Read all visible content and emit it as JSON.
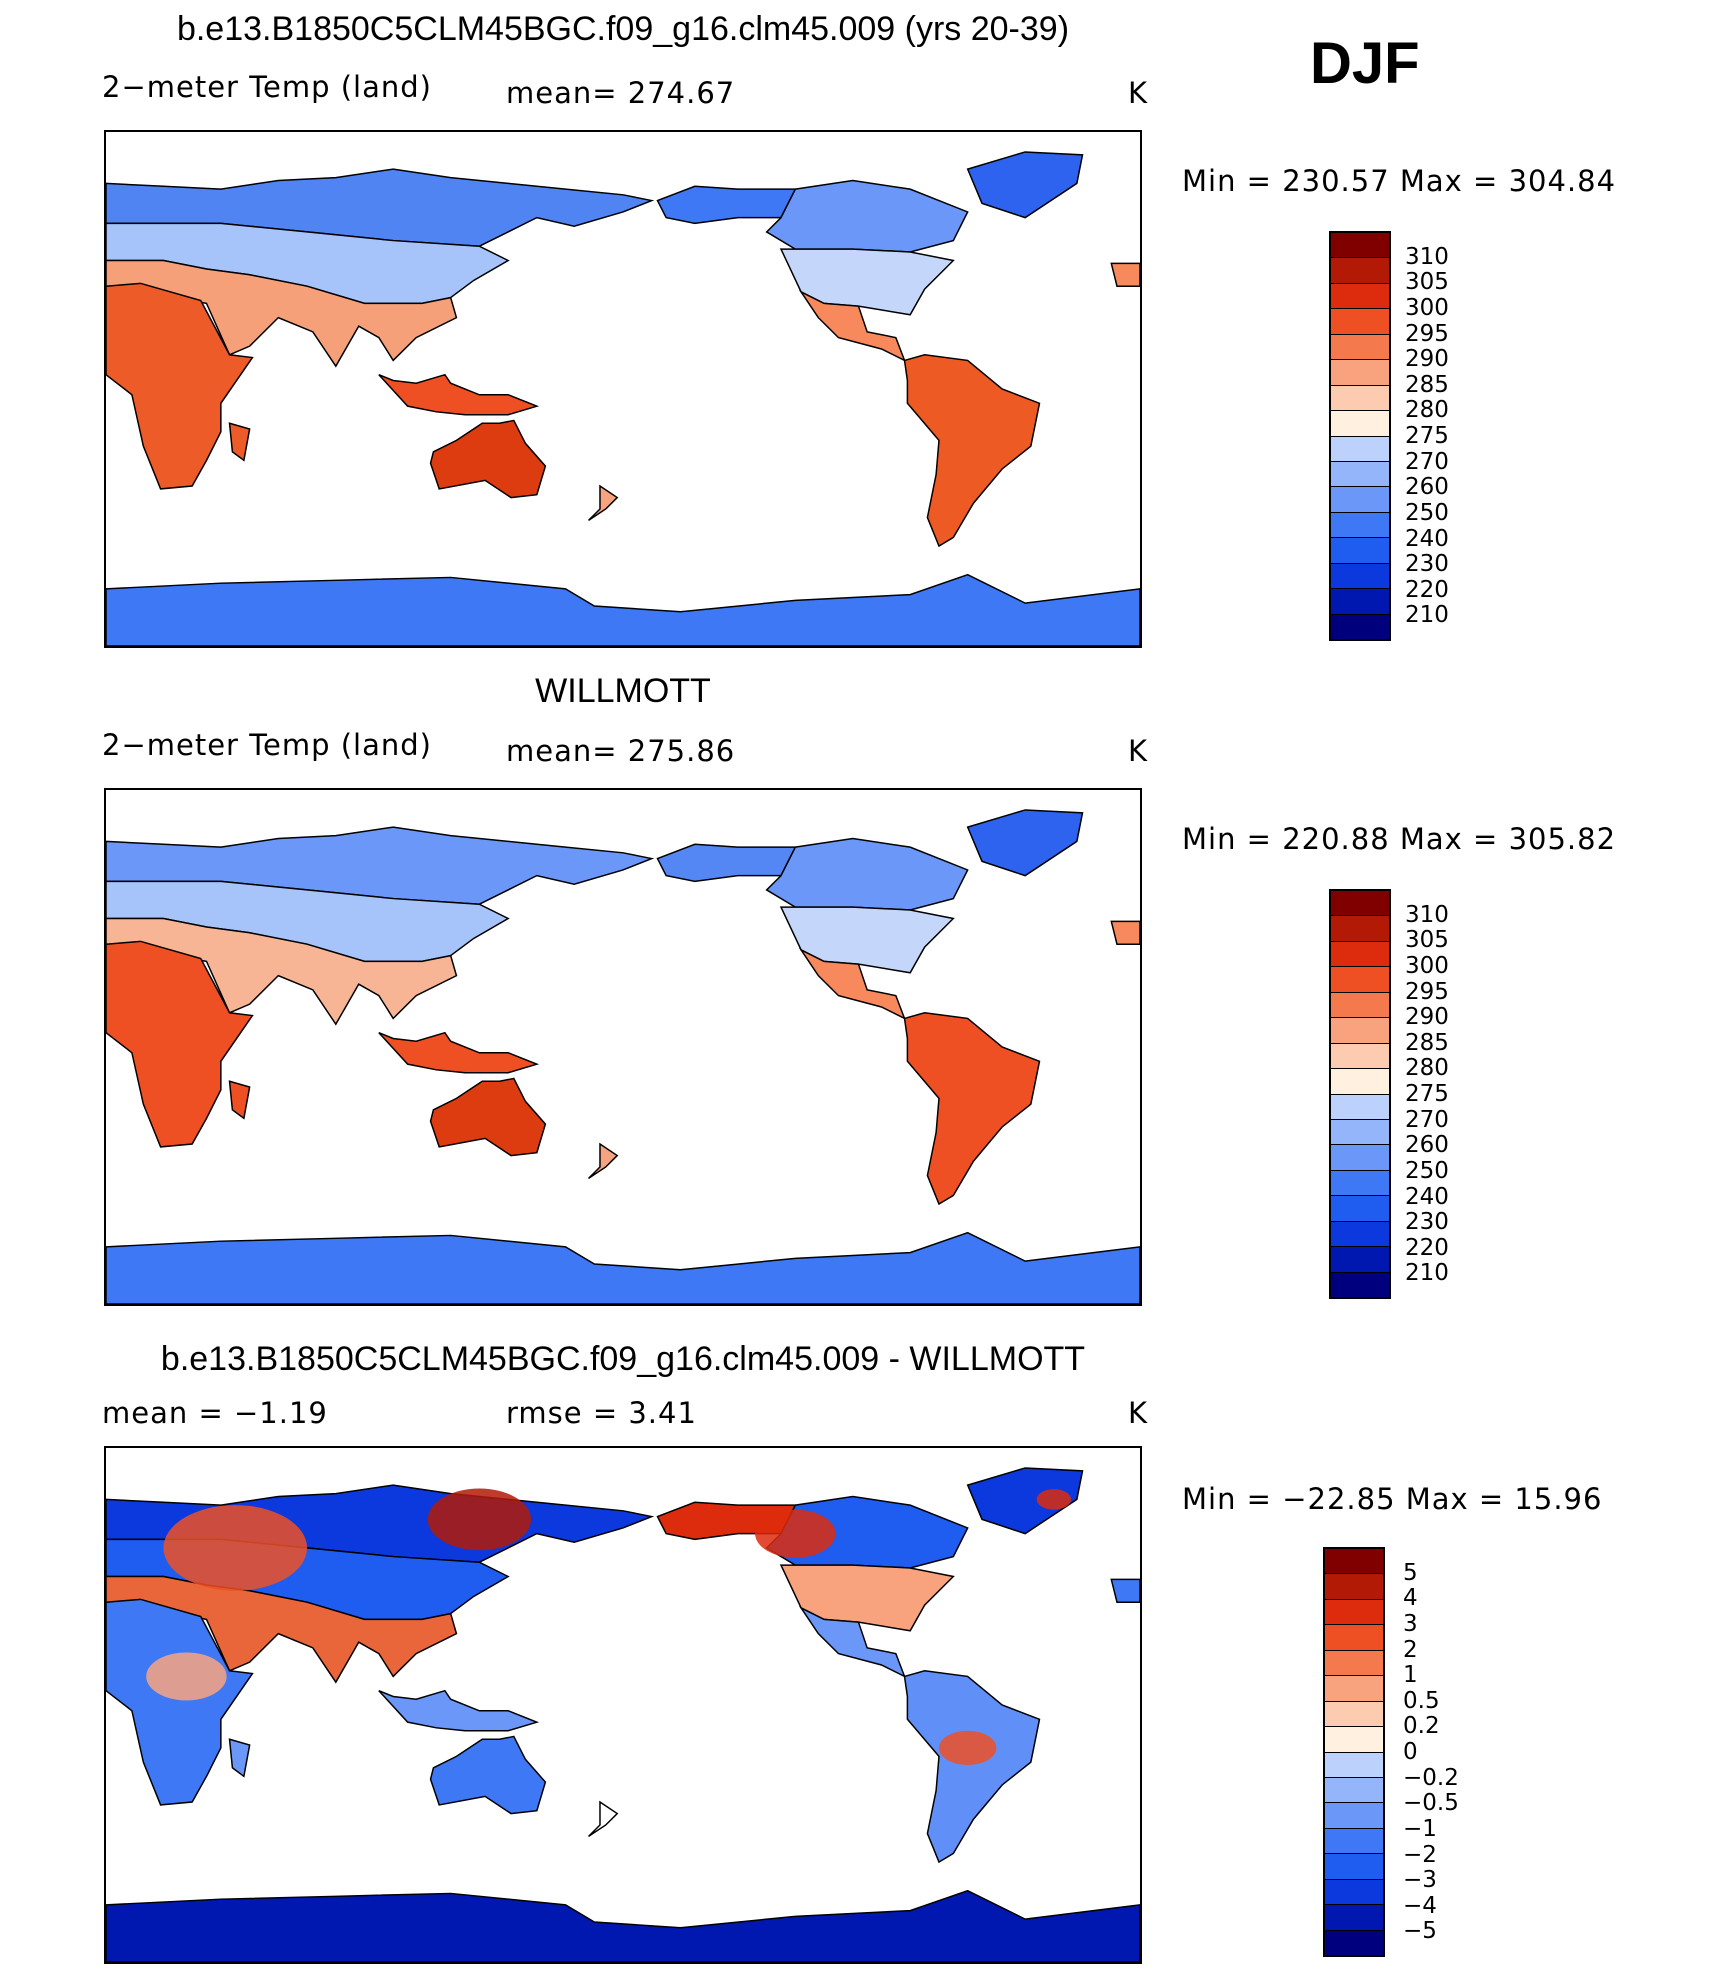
{
  "season": "DJF",
  "colors": {
    "abs_scale": [
      "#00007f",
      "#0017b0",
      "#0b39de",
      "#1f5cf0",
      "#3e78f5",
      "#6a97f8",
      "#95b5fa",
      "#bcd1fb",
      "#dce9fd",
      "#fff0e0",
      "#fccbb0",
      "#f9a37e",
      "#f47a4e",
      "#ee5024",
      "#dd2c0d",
      "#b31a06",
      "#800000"
    ],
    "diff_scale": [
      "#00007f",
      "#0017b0",
      "#0b39de",
      "#1f5cf0",
      "#3e78f5",
      "#6a97f8",
      "#95b5fa",
      "#bcd1fb",
      "#dce9fd",
      "#fff0e0",
      "#fccbb0",
      "#f9a37e",
      "#f47a4e",
      "#ee5024",
      "#dd2c0d",
      "#b31a06",
      "#800000"
    ]
  },
  "panels": [
    {
      "title": "b.e13.B1850C5CLM45BGC.f09_g16.clm45.009 (yrs 20-39)",
      "left_label": "2−meter Temp (land)",
      "center_label": "mean=  274.67",
      "units": "K",
      "minmax": "Min  =  230.57  Max  =  304.84",
      "ticks": [
        "310",
        "305",
        "300",
        "295",
        "290",
        "285",
        "280",
        "275",
        "270",
        "260",
        "250",
        "240",
        "230",
        "220",
        "210"
      ],
      "variant": "model"
    },
    {
      "title": "WILLMOTT",
      "left_label": "2−meter Temp (land)",
      "center_label": "mean=  275.86",
      "units": "K",
      "minmax": "Min  =  220.88  Max  =  305.82",
      "ticks": [
        "310",
        "305",
        "300",
        "295",
        "290",
        "285",
        "280",
        "275",
        "270",
        "260",
        "250",
        "240",
        "230",
        "220",
        "210"
      ],
      "variant": "obs"
    },
    {
      "title": "b.e13.B1850C5CLM45BGC.f09_g16.clm45.009 - WILLMOTT",
      "left_label": "mean  =    −1.19",
      "center_label": "rmse  =     3.41",
      "units": "K",
      "minmax": "Min  =  −22.85  Max  =    15.96",
      "ticks": [
        "5",
        "4",
        "3",
        "2",
        "1",
        "0.5",
        "0.2",
        "0",
        "−0.2",
        "−0.5",
        "−1",
        "−2",
        "−3",
        "−4",
        "−5"
      ],
      "variant": "diff"
    }
  ]
}
